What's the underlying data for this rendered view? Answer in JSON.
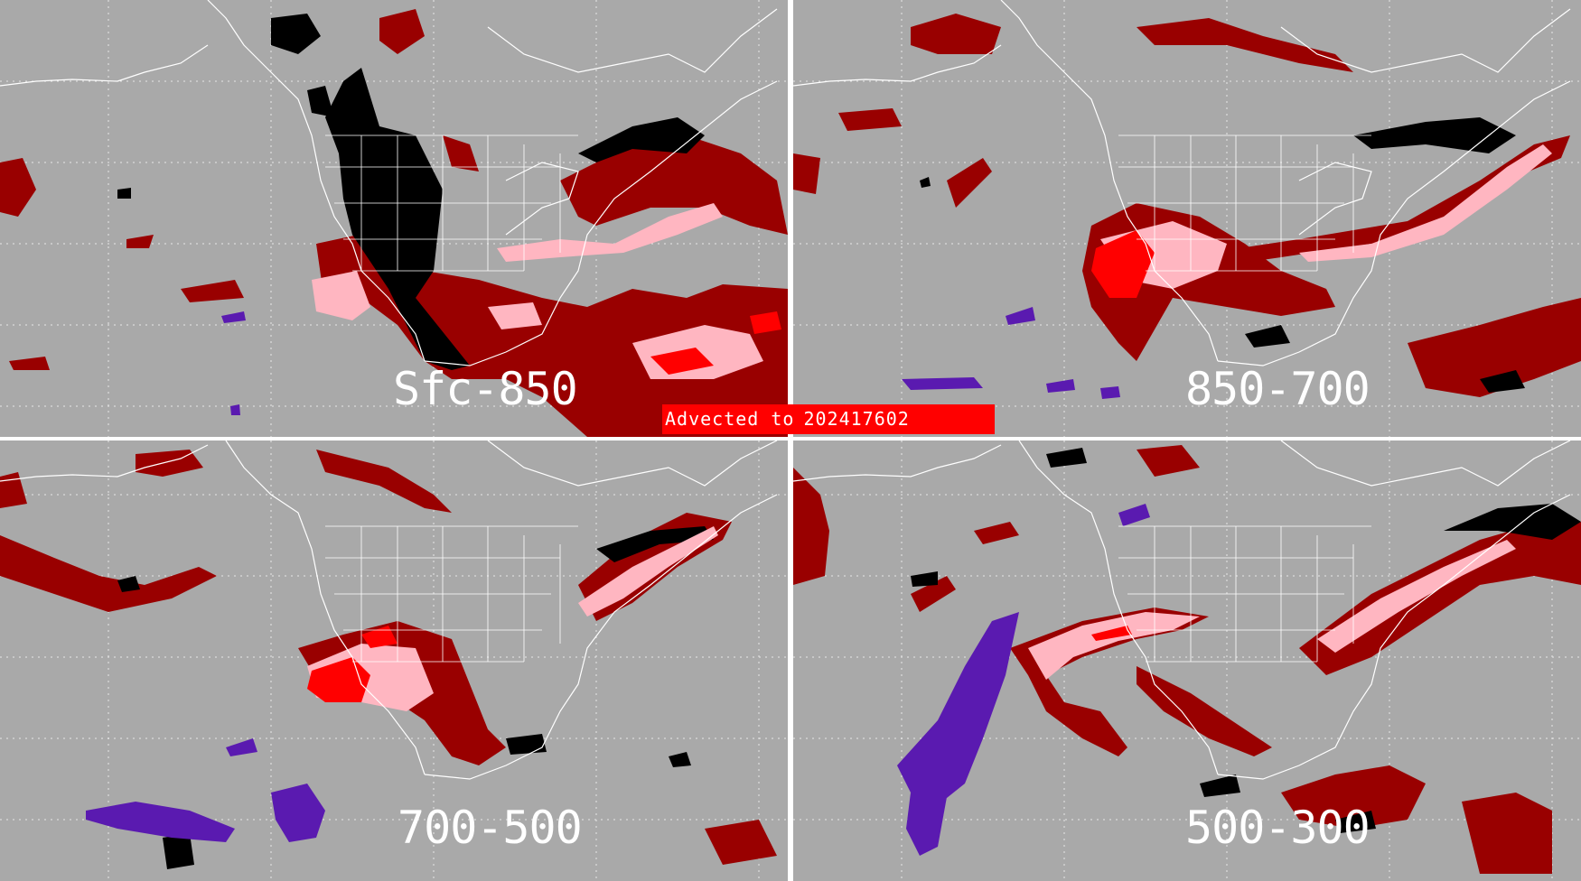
{
  "banner": {
    "prefix": "Advected to",
    "timestamp": "202417602"
  },
  "panels": [
    {
      "label": "Sfc-850"
    },
    {
      "label": "850-700"
    },
    {
      "label": "700-500"
    },
    {
      "label": "500-300"
    }
  ],
  "colors": {
    "background": "#aaaaaa",
    "grid": "#e6e6e6",
    "coastline": "#ffffff",
    "dark_red": "#990000",
    "pink": "#ffb6c1",
    "red": "#ff0000",
    "black": "#000000",
    "purple": "#5a1ab0",
    "divider": "#ffffff"
  }
}
